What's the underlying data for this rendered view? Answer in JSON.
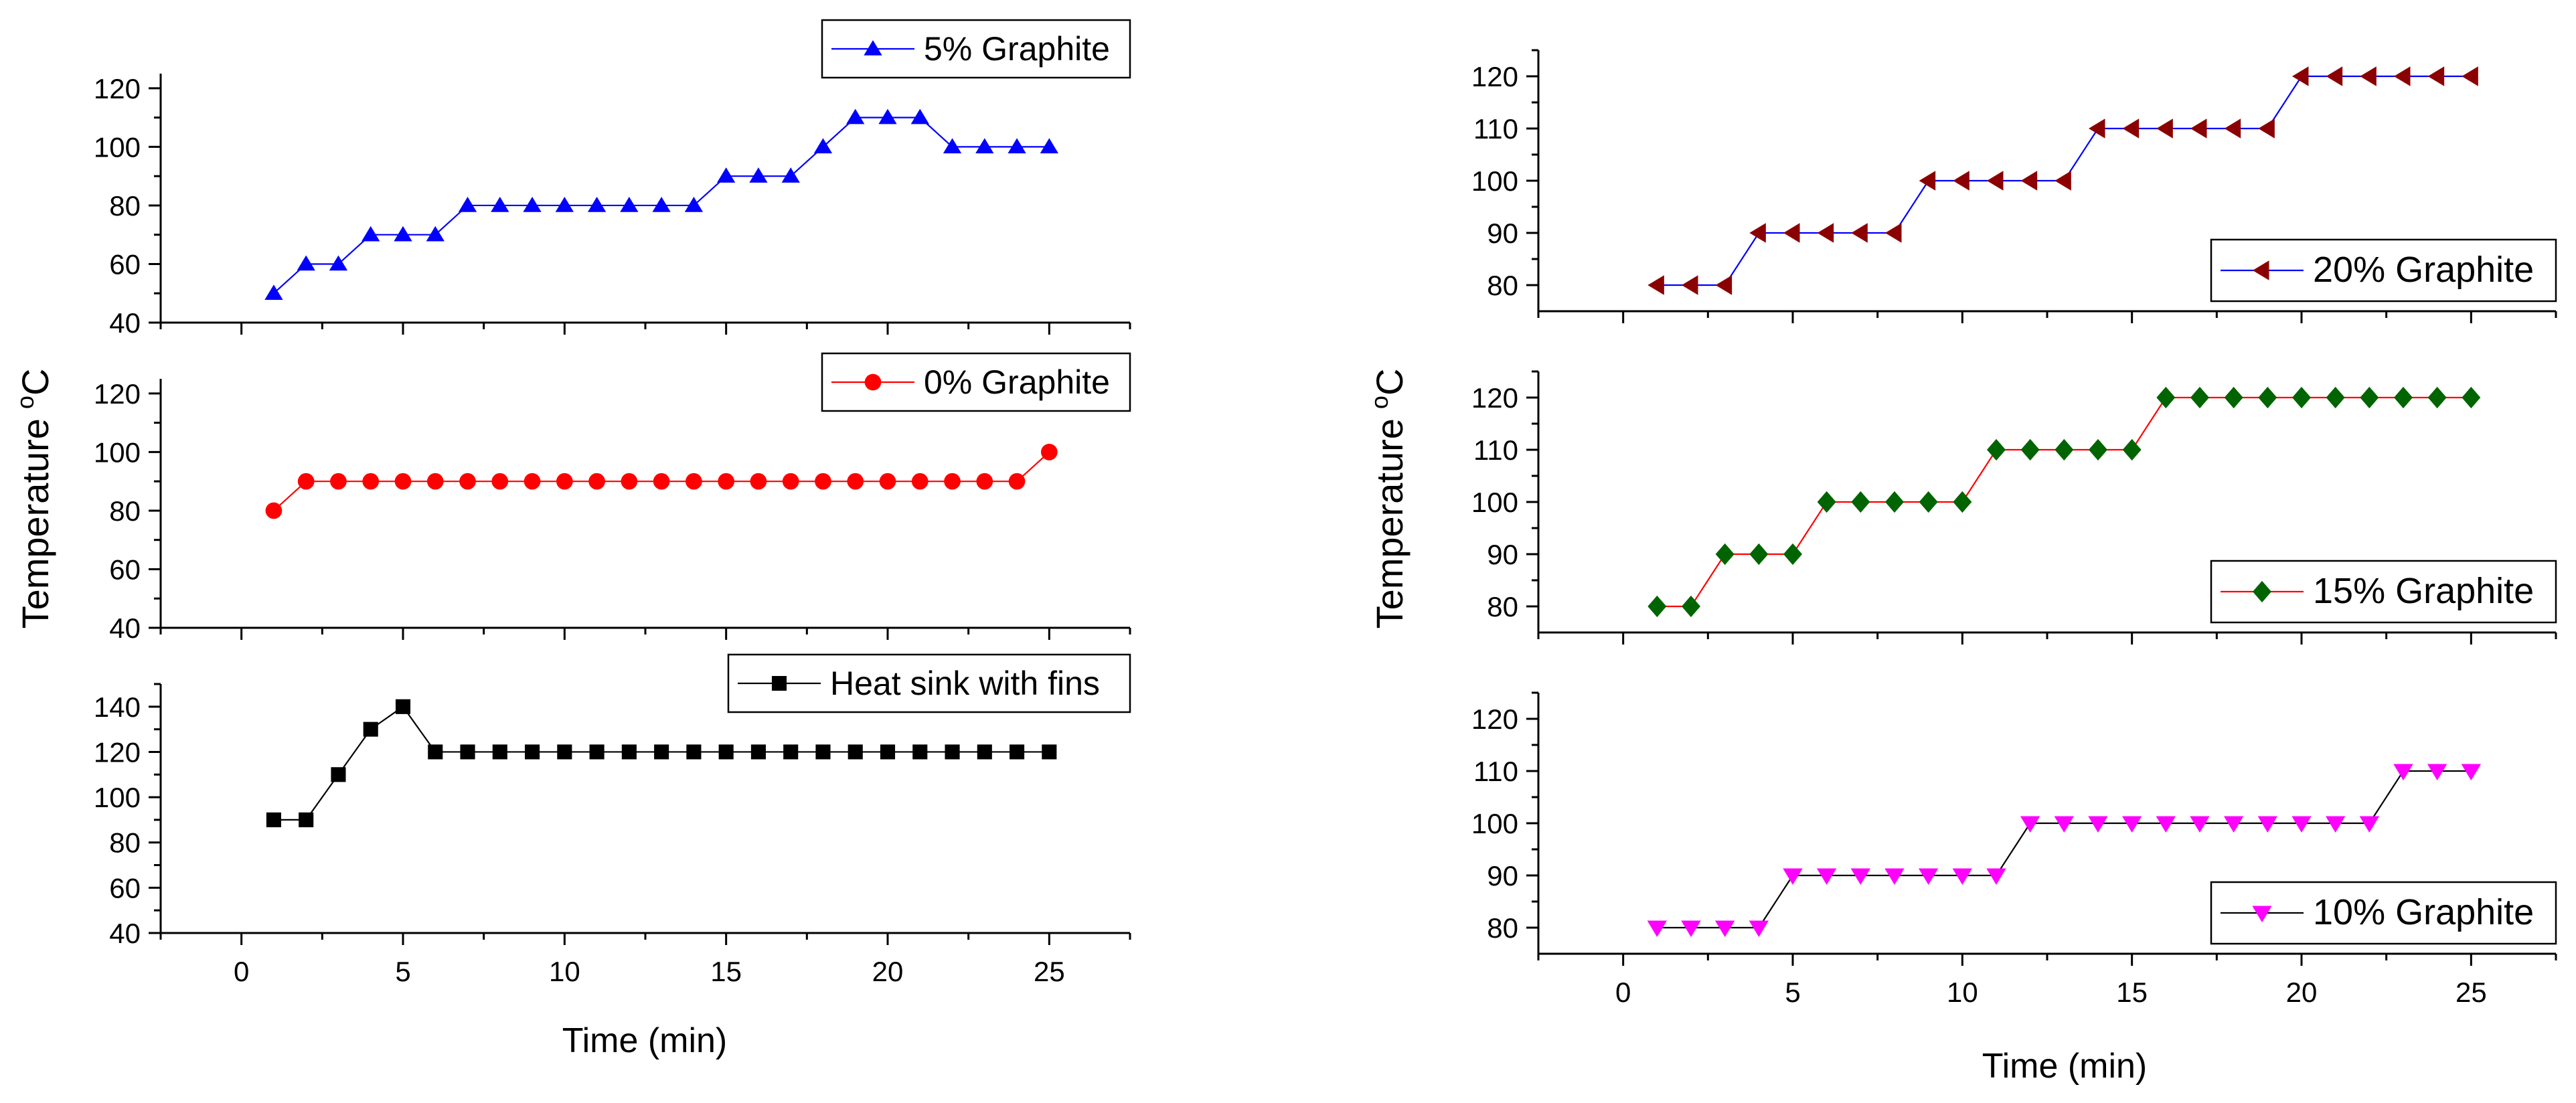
{
  "left_panel": {
    "ylabel": "Temperature",
    "ylabel_sup": "o",
    "ylabel_unit": "C",
    "xlabel": "Time (min)"
  },
  "right_panel": {
    "ylabel": "Temperature",
    "ylabel_sup": "o",
    "ylabel_unit": "C",
    "xlabel": "Time (min)"
  },
  "chart_data": [
    {
      "type": "line",
      "panel": "left",
      "position": "top",
      "name": "5% Graphite",
      "marker": "triangle-up",
      "marker_color": "#0000FF",
      "line_color": "#0000FF",
      "x": [
        1,
        2,
        3,
        4,
        5,
        6,
        7,
        8,
        9,
        10,
        11,
        12,
        13,
        14,
        15,
        16,
        17,
        18,
        19,
        20,
        21,
        22,
        23,
        24,
        25
      ],
      "values": [
        50,
        60,
        60,
        70,
        70,
        70,
        80,
        80,
        80,
        80,
        80,
        80,
        80,
        80,
        90,
        90,
        90,
        100,
        110,
        110,
        110,
        100,
        100,
        100,
        100
      ],
      "xlim": [
        -2.5,
        27.5
      ],
      "ylim": [
        40,
        125
      ],
      "yticks": [
        40,
        60,
        80,
        100,
        120
      ],
      "xticks": [
        0,
        5,
        10,
        15,
        20,
        25
      ],
      "show_x_ticklabels": false,
      "legend_position": "top-right"
    },
    {
      "type": "line",
      "panel": "left",
      "position": "middle",
      "name": "0% Graphite",
      "marker": "circle",
      "marker_color": "#FF0000",
      "line_color": "#FF0000",
      "x": [
        1,
        2,
        3,
        4,
        5,
        6,
        7,
        8,
        9,
        10,
        11,
        12,
        13,
        14,
        15,
        16,
        17,
        18,
        19,
        20,
        21,
        22,
        23,
        24,
        25
      ],
      "values": [
        80,
        90,
        90,
        90,
        90,
        90,
        90,
        90,
        90,
        90,
        90,
        90,
        90,
        90,
        90,
        90,
        90,
        90,
        90,
        90,
        90,
        90,
        90,
        90,
        100
      ],
      "xlim": [
        -2.5,
        27.5
      ],
      "ylim": [
        40,
        125
      ],
      "yticks": [
        40,
        60,
        80,
        100,
        120
      ],
      "xticks": [
        0,
        5,
        10,
        15,
        20,
        25
      ],
      "show_x_ticklabels": false,
      "legend_position": "top-right"
    },
    {
      "type": "line",
      "panel": "left",
      "position": "bottom",
      "name": "Heat sink with fins",
      "marker": "square",
      "marker_color": "#000000",
      "line_color": "#000000",
      "x": [
        1,
        2,
        3,
        4,
        5,
        6,
        7,
        8,
        9,
        10,
        11,
        12,
        13,
        14,
        15,
        16,
        17,
        18,
        19,
        20,
        21,
        22,
        23,
        24,
        25
      ],
      "values": [
        90,
        90,
        110,
        130,
        140,
        120,
        120,
        120,
        120,
        120,
        120,
        120,
        120,
        120,
        120,
        120,
        120,
        120,
        120,
        120,
        120,
        120,
        120,
        120,
        120
      ],
      "xlim": [
        -2.5,
        27.5
      ],
      "ylim": [
        40,
        150
      ],
      "yticks": [
        40,
        60,
        80,
        100,
        120,
        140
      ],
      "xticks": [
        0,
        5,
        10,
        15,
        20,
        25
      ],
      "show_x_ticklabels": true,
      "legend_position": "top-right"
    },
    {
      "type": "line",
      "panel": "right",
      "position": "top",
      "name": "20% Graphite",
      "marker": "triangle-left",
      "marker_color": "#8B0000",
      "line_color": "#0000FF",
      "x": [
        1,
        2,
        3,
        4,
        5,
        6,
        7,
        8,
        9,
        10,
        11,
        12,
        13,
        14,
        15,
        16,
        17,
        18,
        19,
        20,
        21,
        22,
        23,
        24,
        25
      ],
      "values": [
        80,
        80,
        80,
        90,
        90,
        90,
        90,
        90,
        100,
        100,
        100,
        100,
        100,
        110,
        110,
        110,
        110,
        110,
        110,
        120,
        120,
        120,
        120,
        120,
        120
      ],
      "xlim": [
        -2.5,
        27.5
      ],
      "ylim": [
        75,
        125
      ],
      "yticks": [
        80,
        90,
        100,
        110,
        120
      ],
      "xticks": [
        0,
        5,
        10,
        15,
        20,
        25
      ],
      "show_x_ticklabels": false,
      "legend_position": "bottom-right"
    },
    {
      "type": "line",
      "panel": "right",
      "position": "middle",
      "name": "15% Graphite",
      "marker": "diamond",
      "marker_color": "#006400",
      "line_color": "#FF0000",
      "x": [
        1,
        2,
        3,
        4,
        5,
        6,
        7,
        8,
        9,
        10,
        11,
        12,
        13,
        14,
        15,
        16,
        17,
        18,
        19,
        20,
        21,
        22,
        23,
        24,
        25
      ],
      "values": [
        80,
        80,
        90,
        90,
        90,
        100,
        100,
        100,
        100,
        100,
        110,
        110,
        110,
        110,
        110,
        120,
        120,
        120,
        120,
        120,
        120,
        120,
        120,
        120,
        120
      ],
      "xlim": [
        -2.5,
        27.5
      ],
      "ylim": [
        75,
        125
      ],
      "yticks": [
        80,
        90,
        100,
        110,
        120
      ],
      "xticks": [
        0,
        5,
        10,
        15,
        20,
        25
      ],
      "show_x_ticklabels": false,
      "legend_position": "bottom-right"
    },
    {
      "type": "line",
      "panel": "right",
      "position": "bottom",
      "name": "10% Graphite",
      "marker": "triangle-down",
      "marker_color": "#FF00FF",
      "line_color": "#000000",
      "x": [
        1,
        2,
        3,
        4,
        5,
        6,
        7,
        8,
        9,
        10,
        11,
        12,
        13,
        14,
        15,
        16,
        17,
        18,
        19,
        20,
        21,
        22,
        23,
        24,
        25
      ],
      "values": [
        80,
        80,
        80,
        80,
        90,
        90,
        90,
        90,
        90,
        90,
        90,
        100,
        100,
        100,
        100,
        100,
        100,
        100,
        100,
        100,
        100,
        100,
        110,
        110,
        110
      ],
      "xlim": [
        -2.5,
        27.5
      ],
      "ylim": [
        75,
        125
      ],
      "yticks": [
        80,
        90,
        100,
        110,
        120
      ],
      "xticks": [
        0,
        5,
        10,
        15,
        20,
        25
      ],
      "show_x_ticklabels": true,
      "legend_position": "bottom-right"
    }
  ]
}
